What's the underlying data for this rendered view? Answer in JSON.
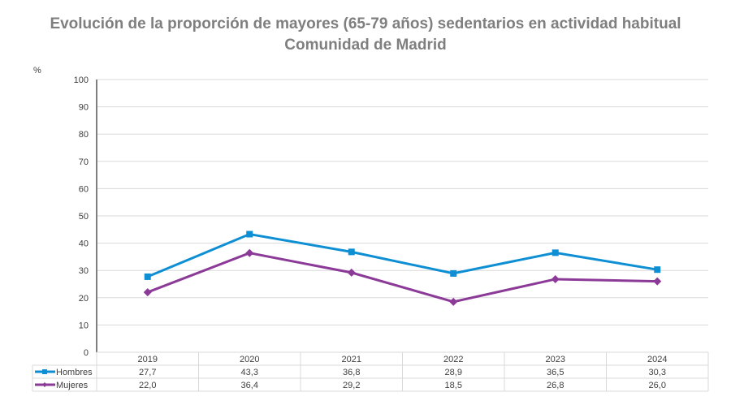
{
  "chart_data": {
    "type": "line",
    "title": "Evolución de la proporción de mayores (65-79 años) sedentarios en actividad habitual",
    "subtitle": "Comunidad de Madrid",
    "ylabel": "%",
    "xlabel": "",
    "ylim": [
      0,
      100
    ],
    "yticks": [
      0,
      10,
      20,
      30,
      40,
      50,
      60,
      70,
      80,
      90,
      100
    ],
    "grid": true,
    "legend": "data-table",
    "categories": [
      "2019",
      "2020",
      "2021",
      "2022",
      "2023",
      "2024"
    ],
    "series": [
      {
        "name": "Hombres",
        "color": "#0e8fd3",
        "marker": "square",
        "values": [
          27.7,
          43.3,
          36.8,
          28.9,
          36.5,
          30.3
        ],
        "labels": [
          "27,7",
          "43,3",
          "36,8",
          "28,9",
          "36,5",
          "30,3"
        ]
      },
      {
        "name": "Mujeres",
        "color": "#8c3a97",
        "marker": "diamond",
        "values": [
          22.0,
          36.4,
          29.2,
          18.5,
          26.8,
          26.0
        ],
        "labels": [
          "22,0",
          "36,4",
          "29,2",
          "18,5",
          "26,8",
          "26,0"
        ]
      }
    ]
  }
}
